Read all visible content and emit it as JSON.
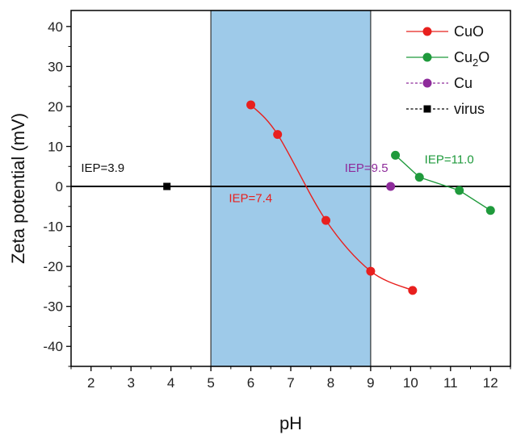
{
  "chart_data": {
    "type": "scatter",
    "title": "",
    "xlabel": "pH",
    "ylabel": "Zeta potential (mV)",
    "xlim": [
      1.5,
      12.5
    ],
    "ylim": [
      -45,
      44
    ],
    "xticks": [
      2,
      3,
      4,
      5,
      6,
      7,
      8,
      9,
      10,
      11,
      12
    ],
    "yticks": [
      -40,
      -30,
      -20,
      -10,
      0,
      10,
      20,
      30,
      40
    ],
    "grid": false,
    "legend_position": "top-right",
    "shaded_region": {
      "x": [
        5,
        9
      ],
      "color": "#9ecae9"
    },
    "reference_line": {
      "y": 0
    },
    "series": [
      {
        "name": "CuO",
        "legend_text": "CuO",
        "color": "#e8201e",
        "marker": "circle",
        "line": "solid-curve",
        "points": [
          {
            "x": 6.0,
            "y": 20.4
          },
          {
            "x": 6.67,
            "y": 13.0
          },
          {
            "x": 7.88,
            "y": -8.5
          },
          {
            "x": 9.0,
            "y": -21.2
          },
          {
            "x": 10.05,
            "y": -26.0
          }
        ]
      },
      {
        "name": "Cu2O",
        "legend_text": "Cu",
        "legend_sub": "2",
        "legend_tail": "O",
        "color": "#1f9a3c",
        "marker": "circle",
        "line": "solid",
        "points": [
          {
            "x": 9.62,
            "y": 7.8
          },
          {
            "x": 10.22,
            "y": 2.3
          },
          {
            "x": 11.22,
            "y": -1.0
          },
          {
            "x": 12.0,
            "y": -6.0
          }
        ]
      },
      {
        "name": "Cu",
        "legend_text": "Cu",
        "color": "#8e2b9b",
        "marker": "circle",
        "line": "dotted",
        "points": [
          {
            "x": 9.5,
            "y": 0
          }
        ]
      },
      {
        "name": "virus",
        "legend_text": "virus",
        "color": "#000000",
        "marker": "square",
        "line": "dotted",
        "points": [
          {
            "x": 3.9,
            "y": 0
          }
        ]
      }
    ],
    "annotations": [
      {
        "text": "IEP=3.9",
        "x": 1.75,
        "y": 3.6,
        "color": "#111111"
      },
      {
        "text": "IEP=7.4",
        "x": 5.45,
        "y": -3.9,
        "color": "#e8201e"
      },
      {
        "text": "IEP=9.5",
        "x": 8.35,
        "y": 3.6,
        "color": "#8e2b9b"
      },
      {
        "text": "IEP=11.0",
        "x": 10.35,
        "y": 5.8,
        "color": "#1f9a3c"
      }
    ]
  }
}
